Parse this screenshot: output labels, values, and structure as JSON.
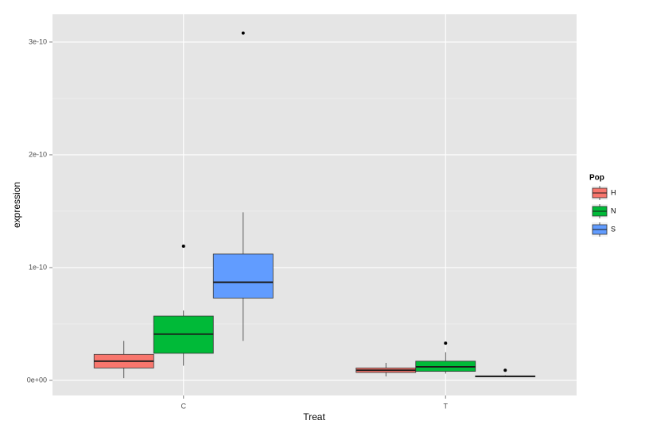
{
  "chart_data": {
    "type": "box",
    "x_label": "Treat",
    "y_label": "expression",
    "categories": [
      "C",
      "T"
    ],
    "ylim": [
      -1.34e-11,
      3.246e-10
    ],
    "yticks": [
      {
        "value": 0,
        "label": "0e+00"
      },
      {
        "value": 1e-10,
        "label": "1e-10"
      },
      {
        "value": 2e-10,
        "label": "2e-10"
      },
      {
        "value": 3e-10,
        "label": "3e-10"
      }
    ],
    "grid": true,
    "legend_title": "Pop",
    "legend_position": "right",
    "series": [
      {
        "name": "H",
        "color": "#F8766D",
        "values": [
          {
            "low": 2e-12,
            "q1": 1.1e-11,
            "median": 1.7e-11,
            "q3": 2.3e-11,
            "high": 3.5e-11,
            "outliers": []
          },
          {
            "low": 3.5e-12,
            "q1": 7e-12,
            "median": 9e-12,
            "q3": 1.1e-11,
            "high": 1.55e-11,
            "outliers": []
          }
        ]
      },
      {
        "name": "N",
        "color": "#00BA38",
        "values": [
          {
            "low": 1.3e-11,
            "q1": 2.4e-11,
            "median": 4.1e-11,
            "q3": 5.7e-11,
            "high": 6.2e-11,
            "outliers": [
              1.19e-10
            ]
          },
          {
            "low": 6e-12,
            "q1": 8e-12,
            "median": 1.2e-11,
            "q3": 1.7e-11,
            "high": 2.5e-11,
            "outliers": [
              3.3e-11
            ]
          }
        ]
      },
      {
        "name": "S",
        "color": "#619CFF",
        "values": [
          {
            "low": 3.5e-11,
            "q1": 7.3e-11,
            "median": 8.7e-11,
            "q3": 1.12e-10,
            "high": 1.49e-10,
            "outliers": [
              3.08e-10
            ]
          },
          {
            "low": 3e-12,
            "q1": 3.2e-12,
            "median": 3.5e-12,
            "q3": 4e-12,
            "high": 4.5e-12,
            "outliers": [
              9e-12
            ]
          }
        ]
      }
    ]
  }
}
